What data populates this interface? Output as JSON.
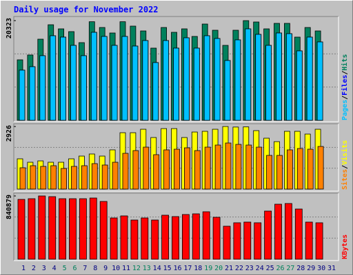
{
  "title": "Daily usage for November 2022",
  "chart_data": [
    {
      "type": "bar",
      "ylim": [
        0,
        20323
      ],
      "yticks": [
        20323
      ],
      "legend_separator": "/",
      "series": [
        {
          "name": "Hits",
          "color": "#00805c",
          "values": [
            12335,
            13319,
            16541,
            19484,
            18646,
            18085,
            15839,
            20100,
            18925,
            17803,
            20100,
            19205,
            18222,
            14719,
            18925,
            17943,
            18646,
            17103,
            19626,
            18364,
            15280,
            18364,
            20323,
            20046,
            18646,
            19766,
            19766,
            16962,
            18925,
            18222,
            null
          ]
        },
        {
          "name": "Files",
          "color": "#0000ff",
          "values": [
            10233,
            10934,
            13178,
            17243,
            16962,
            15280,
            13178,
            17943,
            17103,
            15280,
            17103,
            15140,
            16262,
            11776,
            16262,
            14719,
            16822,
            14719,
            17243,
            16682,
            12196,
            16402,
            18646,
            17523,
            15280,
            17803,
            17663,
            14158,
            16962,
            15981,
            null
          ]
        },
        {
          "name": "Pages",
          "color": "#00c0ff",
          "values": [
            10233,
            10934,
            13178,
            17243,
            16962,
            15280,
            13178,
            17943,
            17103,
            15280,
            17103,
            15140,
            16262,
            11776,
            16262,
            14719,
            16822,
            14719,
            17243,
            16682,
            12196,
            16402,
            18646,
            17523,
            15280,
            17803,
            17663,
            14158,
            16962,
            15981,
            null
          ]
        }
      ]
    },
    {
      "type": "bar",
      "ylim": [
        0,
        2926
      ],
      "yticks": [
        2926
      ],
      "legend_separator": "/",
      "series": [
        {
          "name": "Visits",
          "color": "#ffff00",
          "values": [
            1415,
            1254,
            1318,
            1254,
            1254,
            1415,
            1543,
            1640,
            1543,
            1833,
            2636,
            2636,
            2797,
            2411,
            2829,
            2829,
            2411,
            2668,
            2701,
            2797,
            2926,
            2900,
            2910,
            2733,
            2379,
            2218,
            2701,
            2701,
            2572,
            2797,
            null
          ]
        },
        {
          "name": "Sites",
          "color": "#ff8000",
          "values": [
            997,
            1093,
            1061,
            1093,
            965,
            1061,
            1093,
            1190,
            1125,
            1254,
            1672,
            1800,
            1961,
            1608,
            1833,
            1865,
            1929,
            1800,
            1961,
            2058,
            2154,
            2090,
            2058,
            1961,
            1575,
            1575,
            1833,
            1897,
            1865,
            1993,
            null
          ]
        }
      ]
    },
    {
      "type": "bar",
      "ylim": [
        0,
        840879
      ],
      "yticks": [
        840879
      ],
      "categories": [
        "1",
        "2",
        "3",
        "4",
        "5",
        "6",
        "7",
        "8",
        "9",
        "10",
        "11",
        "12",
        "13",
        "14",
        "15",
        "16",
        "17",
        "18",
        "19",
        "20",
        "21",
        "22",
        "23",
        "24",
        "25",
        "26",
        "27",
        "28",
        "29",
        "30",
        "31"
      ],
      "category_colors": [
        "#000080",
        "#000080",
        "#000080",
        "#000080",
        "#00805c",
        "#00805c",
        "#000080",
        "#000080",
        "#000080",
        "#000080",
        "#000080",
        "#00805c",
        "#00805c",
        "#000080",
        "#000080",
        "#000080",
        "#000080",
        "#000080",
        "#00805c",
        "#00805c",
        "#000080",
        "#000080",
        "#000080",
        "#000080",
        "#000080",
        "#00805c",
        "#00805c",
        "#000080",
        "#000080",
        "#000080",
        "#000080"
      ],
      "series": [
        {
          "name": "KBytes",
          "color": "#ff0000",
          "values": [
            795180,
            804320,
            840879,
            831740,
            804320,
            804320,
            804320,
            813460,
            767760,
            548400,
            575820,
            520980,
            548400,
            520980,
            584960,
            566680,
            594100,
            603240,
            630660,
            557540,
            438720,
            484420,
            493560,
            484420,
            639800,
            731200,
            740340,
            667220,
            493560,
            484420,
            null
          ]
        }
      ]
    }
  ]
}
